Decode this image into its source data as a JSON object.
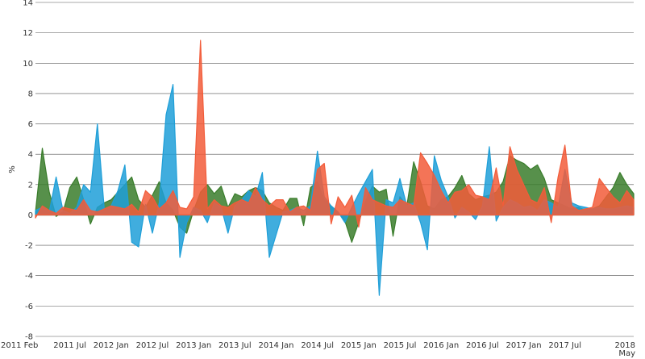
{
  "chart_data": {
    "type": "area",
    "title": "",
    "xlabel": "",
    "ylabel": "%",
    "ylim": [
      -8,
      14
    ],
    "y_ticks": [
      -8,
      -6,
      -4,
      -2,
      0,
      2,
      4,
      6,
      8,
      10,
      12,
      14
    ],
    "x_range": [
      "2011-02",
      "2018-05"
    ],
    "x_tick_labels": [
      "2011 Feb",
      "2011 Jul",
      "2012 Jan",
      "2012 Jul",
      "2013 Jan",
      "2013 Jul",
      "2014 Jan",
      "2014 Jul",
      "2015 Jan",
      "2015 Jul",
      "2016 Jan",
      "2016 Jul",
      "2017 Jan",
      "2017 Jul",
      "2018 May"
    ],
    "x_tick_dates": [
      "2011-02",
      "2011-07",
      "2012-01",
      "2012-07",
      "2013-01",
      "2013-07",
      "2014-01",
      "2014-07",
      "2015-01",
      "2015-07",
      "2016-01",
      "2016-07",
      "2017-01",
      "2017-07",
      "2018-05"
    ],
    "grid": true,
    "legend": "none",
    "series": [
      {
        "color": "#3a7d2c",
        "points": [
          [
            "2011-02",
            0.2
          ],
          [
            "2011-03",
            4.4
          ],
          [
            "2011-04",
            1.5
          ],
          [
            "2011-05",
            -0.1
          ],
          [
            "2011-06",
            0.2
          ],
          [
            "2011-07",
            1.8
          ],
          [
            "2011-08",
            2.5
          ],
          [
            "2011-09",
            1.0
          ],
          [
            "2011-10",
            -0.6
          ],
          [
            "2011-11",
            0.5
          ],
          [
            "2011-12",
            0.8
          ],
          [
            "2012-01",
            1.0
          ],
          [
            "2012-02",
            1.5
          ],
          [
            "2012-03",
            2.0
          ],
          [
            "2012-04",
            2.5
          ],
          [
            "2012-05",
            1.0
          ],
          [
            "2012-06",
            0.5
          ],
          [
            "2012-07",
            1.3
          ],
          [
            "2012-08",
            2.2
          ],
          [
            "2012-09",
            0.8
          ],
          [
            "2012-10",
            0.3
          ],
          [
            "2012-11",
            -0.8
          ],
          [
            "2012-12",
            -1.2
          ],
          [
            "2013-01",
            0.3
          ],
          [
            "2013-02",
            1.5
          ],
          [
            "2013-03",
            2.0
          ],
          [
            "2013-04",
            1.4
          ],
          [
            "2013-05",
            1.9
          ],
          [
            "2013-06",
            0.5
          ],
          [
            "2013-07",
            1.4
          ],
          [
            "2013-08",
            1.2
          ],
          [
            "2013-09",
            1.6
          ],
          [
            "2013-10",
            1.8
          ],
          [
            "2013-11",
            1.6
          ],
          [
            "2013-12",
            0.8
          ],
          [
            "2014-01",
            0.5
          ],
          [
            "2014-02",
            0.3
          ],
          [
            "2014-03",
            1.1
          ],
          [
            "2014-04",
            1.1
          ],
          [
            "2014-05",
            -0.7
          ],
          [
            "2014-06",
            1.8
          ],
          [
            "2014-07",
            2.2
          ],
          [
            "2014-08",
            1.0
          ],
          [
            "2014-09",
            0.6
          ],
          [
            "2014-10",
            0.2
          ],
          [
            "2014-11",
            -0.4
          ],
          [
            "2014-12",
            -1.8
          ],
          [
            "2015-01",
            -0.5
          ],
          [
            "2015-02",
            0.9
          ],
          [
            "2015-03",
            1.9
          ],
          [
            "2015-04",
            1.5
          ],
          [
            "2015-05",
            1.7
          ],
          [
            "2015-06",
            -1.4
          ],
          [
            "2015-07",
            1.2
          ],
          [
            "2015-08",
            0.6
          ],
          [
            "2015-09",
            3.5
          ],
          [
            "2015-10",
            2.2
          ],
          [
            "2015-11",
            0.6
          ],
          [
            "2015-12",
            0.4
          ],
          [
            "2016-01",
            1.0
          ],
          [
            "2016-02",
            1.2
          ],
          [
            "2016-03",
            1.8
          ],
          [
            "2016-04",
            2.6
          ],
          [
            "2016-05",
            1.4
          ],
          [
            "2016-06",
            1.0
          ],
          [
            "2016-07",
            1.2
          ],
          [
            "2016-08",
            1.3
          ],
          [
            "2016-09",
            1.5
          ],
          [
            "2016-10",
            2.2
          ],
          [
            "2016-11",
            3.9
          ],
          [
            "2016-12",
            3.6
          ],
          [
            "2017-01",
            3.4
          ],
          [
            "2017-02",
            3.0
          ],
          [
            "2017-03",
            3.3
          ],
          [
            "2017-04",
            2.4
          ],
          [
            "2017-05",
            1.0
          ],
          [
            "2017-06",
            0.8
          ],
          [
            "2017-07",
            0.6
          ],
          [
            "2017-08",
            0.4
          ],
          [
            "2017-09",
            0.5
          ],
          [
            "2017-10",
            0.3
          ],
          [
            "2017-11",
            0.4
          ],
          [
            "2017-12",
            0.6
          ],
          [
            "2018-01",
            1.2
          ],
          [
            "2018-02",
            1.8
          ],
          [
            "2018-03",
            2.8
          ],
          [
            "2018-04",
            2.0
          ],
          [
            "2018-05",
            1.4
          ]
        ]
      },
      {
        "color": "#1f9fd8",
        "points": [
          [
            "2011-02",
            0.3
          ],
          [
            "2011-03",
            0.5
          ],
          [
            "2011-04",
            0.2
          ],
          [
            "2011-05",
            2.5
          ],
          [
            "2011-06",
            0.3
          ],
          [
            "2011-07",
            0.1
          ],
          [
            "2011-08",
            0.5
          ],
          [
            "2011-09",
            2.0
          ],
          [
            "2011-10",
            1.5
          ],
          [
            "2011-11",
            6.0
          ],
          [
            "2011-12",
            0.4
          ],
          [
            "2012-01",
            0.6
          ],
          [
            "2012-02",
            1.6
          ],
          [
            "2012-03",
            3.3
          ],
          [
            "2012-04",
            -1.8
          ],
          [
            "2012-05",
            -2.1
          ],
          [
            "2012-06",
            0.7
          ],
          [
            "2012-07",
            -1.2
          ],
          [
            "2012-08",
            0.8
          ],
          [
            "2012-09",
            6.6
          ],
          [
            "2012-10",
            8.6
          ],
          [
            "2012-11",
            -2.8
          ],
          [
            "2012-12",
            -0.5
          ],
          [
            "2013-01",
            0.5
          ],
          [
            "2013-02",
            0.3
          ],
          [
            "2013-03",
            -0.5
          ],
          [
            "2013-04",
            0.8
          ],
          [
            "2013-05",
            0.5
          ],
          [
            "2013-06",
            -1.2
          ],
          [
            "2013-07",
            0.6
          ],
          [
            "2013-08",
            1.0
          ],
          [
            "2013-09",
            1.6
          ],
          [
            "2013-10",
            1.2
          ],
          [
            "2013-11",
            2.8
          ],
          [
            "2013-12",
            -2.8
          ],
          [
            "2014-01",
            -1.3
          ],
          [
            "2014-02",
            0.2
          ],
          [
            "2014-03",
            0.3
          ],
          [
            "2014-04",
            0.5
          ],
          [
            "2014-05",
            0.3
          ],
          [
            "2014-06",
            0.6
          ],
          [
            "2014-07",
            4.2
          ],
          [
            "2014-08",
            1.2
          ],
          [
            "2014-09",
            0.6
          ],
          [
            "2014-10",
            0.2
          ],
          [
            "2014-11",
            -0.5
          ],
          [
            "2014-12",
            0.5
          ],
          [
            "2015-01",
            1.4
          ],
          [
            "2015-02",
            2.2
          ],
          [
            "2015-03",
            3.0
          ],
          [
            "2015-04",
            -5.3
          ],
          [
            "2015-05",
            1.0
          ],
          [
            "2015-06",
            0.8
          ],
          [
            "2015-07",
            2.4
          ],
          [
            "2015-08",
            0.6
          ],
          [
            "2015-09",
            0.8
          ],
          [
            "2015-10",
            -0.5
          ],
          [
            "2015-11",
            -2.3
          ],
          [
            "2015-12",
            3.9
          ],
          [
            "2016-01",
            2.3
          ],
          [
            "2016-02",
            1.2
          ],
          [
            "2016-03",
            -0.2
          ],
          [
            "2016-04",
            0.5
          ],
          [
            "2016-05",
            0.2
          ],
          [
            "2016-06",
            -0.3
          ],
          [
            "2016-07",
            0.6
          ],
          [
            "2016-08",
            4.5
          ],
          [
            "2016-09",
            -0.4
          ],
          [
            "2016-10",
            0.5
          ],
          [
            "2016-11",
            1.0
          ],
          [
            "2016-12",
            0.8
          ],
          [
            "2017-01",
            0.5
          ],
          [
            "2017-02",
            0.6
          ],
          [
            "2017-03",
            0.3
          ],
          [
            "2017-04",
            1.0
          ],
          [
            "2017-05",
            0.8
          ],
          [
            "2017-06",
            0.5
          ],
          [
            "2017-07",
            3.0
          ],
          [
            "2017-08",
            0.8
          ],
          [
            "2017-09",
            0.6
          ],
          [
            "2017-10",
            0.5
          ],
          [
            "2017-11",
            0.4
          ],
          [
            "2017-12",
            0.5
          ],
          [
            "2018-01",
            0.4
          ],
          [
            "2018-02",
            0.4
          ],
          [
            "2018-03",
            0.5
          ],
          [
            "2018-04",
            0.6
          ],
          [
            "2018-05",
            0.5
          ]
        ]
      },
      {
        "color": "#f25c3a",
        "points": [
          [
            "2011-02",
            -0.2
          ],
          [
            "2011-03",
            0.6
          ],
          [
            "2011-04",
            0.3
          ],
          [
            "2011-05",
            0.1
          ],
          [
            "2011-06",
            0.5
          ],
          [
            "2011-07",
            0.4
          ],
          [
            "2011-08",
            0.3
          ],
          [
            "2011-09",
            1.0
          ],
          [
            "2011-10",
            0.3
          ],
          [
            "2011-11",
            0.2
          ],
          [
            "2011-12",
            0.4
          ],
          [
            "2012-01",
            0.6
          ],
          [
            "2012-02",
            0.5
          ],
          [
            "2012-03",
            0.4
          ],
          [
            "2012-04",
            0.7
          ],
          [
            "2012-05",
            0.2
          ],
          [
            "2012-06",
            1.6
          ],
          [
            "2012-07",
            1.2
          ],
          [
            "2012-08",
            0.4
          ],
          [
            "2012-09",
            0.8
          ],
          [
            "2012-10",
            1.6
          ],
          [
            "2012-11",
            0.5
          ],
          [
            "2012-12",
            0.4
          ],
          [
            "2013-01",
            1.2
          ],
          [
            "2013-02",
            11.5
          ],
          [
            "2013-03",
            0.4
          ],
          [
            "2013-04",
            1.0
          ],
          [
            "2013-05",
            0.6
          ],
          [
            "2013-06",
            0.5
          ],
          [
            "2013-07",
            0.8
          ],
          [
            "2013-08",
            1.0
          ],
          [
            "2013-09",
            0.8
          ],
          [
            "2013-10",
            1.8
          ],
          [
            "2013-11",
            1.0
          ],
          [
            "2013-12",
            0.6
          ],
          [
            "2014-01",
            1.0
          ],
          [
            "2014-02",
            1.0
          ],
          [
            "2014-03",
            0.2
          ],
          [
            "2014-04",
            0.5
          ],
          [
            "2014-05",
            0.6
          ],
          [
            "2014-06",
            0.3
          ],
          [
            "2014-07",
            3.0
          ],
          [
            "2014-08",
            3.4
          ],
          [
            "2014-09",
            -0.6
          ],
          [
            "2014-10",
            1.2
          ],
          [
            "2014-11",
            0.5
          ],
          [
            "2014-12",
            1.3
          ],
          [
            "2015-01",
            -0.8
          ],
          [
            "2015-02",
            1.8
          ],
          [
            "2015-03",
            1.0
          ],
          [
            "2015-04",
            0.8
          ],
          [
            "2015-05",
            0.6
          ],
          [
            "2015-06",
            0.5
          ],
          [
            "2015-07",
            1.0
          ],
          [
            "2015-08",
            0.8
          ],
          [
            "2015-09",
            0.6
          ],
          [
            "2015-10",
            4.1
          ],
          [
            "2015-11",
            3.4
          ],
          [
            "2015-12",
            2.6
          ],
          [
            "2016-01",
            1.6
          ],
          [
            "2016-02",
            0.8
          ],
          [
            "2016-03",
            1.5
          ],
          [
            "2016-04",
            1.6
          ],
          [
            "2016-05",
            2.0
          ],
          [
            "2016-06",
            1.3
          ],
          [
            "2016-07",
            1.2
          ],
          [
            "2016-08",
            1.0
          ],
          [
            "2016-09",
            3.1
          ],
          [
            "2016-10",
            0.6
          ],
          [
            "2016-11",
            4.5
          ],
          [
            "2016-12",
            3.0
          ],
          [
            "2017-01",
            2.0
          ],
          [
            "2017-02",
            1.0
          ],
          [
            "2017-03",
            0.8
          ],
          [
            "2017-04",
            1.8
          ],
          [
            "2017-05",
            -0.5
          ],
          [
            "2017-06",
            2.5
          ],
          [
            "2017-07",
            4.6
          ],
          [
            "2017-08",
            0.6
          ],
          [
            "2017-09",
            0.3
          ],
          [
            "2017-10",
            0.4
          ],
          [
            "2017-11",
            0.5
          ],
          [
            "2017-12",
            2.4
          ],
          [
            "2018-01",
            1.8
          ],
          [
            "2018-02",
            1.2
          ],
          [
            "2018-03",
            0.8
          ],
          [
            "2018-04",
            1.6
          ],
          [
            "2018-05",
            1.0
          ]
        ]
      }
    ]
  }
}
